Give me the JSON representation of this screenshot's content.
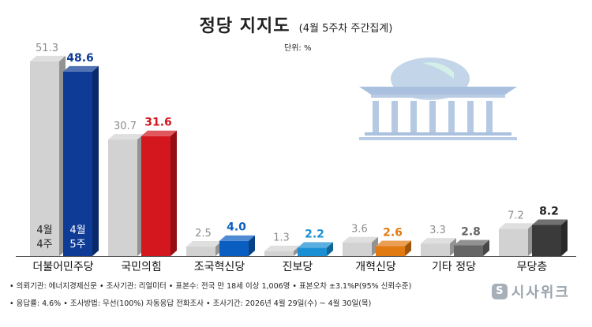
{
  "header": {
    "title": "정당 지지도",
    "subtitle": "(4월 5주차 주간집계)",
    "unit": "단위: %"
  },
  "chart_data": {
    "type": "bar",
    "categories": [
      "더불어민주당",
      "국민의힘",
      "조국혁신당",
      "진보당",
      "개혁신당",
      "기타 정당",
      "무당층"
    ],
    "series": [
      {
        "name": "4월 4주",
        "values": [
          51.3,
          30.7,
          2.5,
          1.3,
          3.6,
          3.3,
          7.2
        ],
        "color": "#d2d2d2"
      },
      {
        "name": "4월 5주",
        "values": [
          48.6,
          31.6,
          4.0,
          2.2,
          2.6,
          2.8,
          8.2
        ]
      }
    ],
    "colors_current": [
      "#0d3b96",
      "#d4161e",
      "#0a5ec2",
      "#1a8fd4",
      "#e27a12",
      "#666666",
      "#3a3a3a"
    ],
    "value_label_colors": [
      "#0d3b96",
      "#d4161e",
      "#0a5ec2",
      "#1a8fd4",
      "#e27a12",
      "#666666",
      "#222222"
    ],
    "in_bar_labels": [
      "4월\n4주",
      "4월\n5주"
    ],
    "ylim": [
      0,
      55
    ]
  },
  "footer": {
    "line1": "• 의뢰기관: 에너지경제신문  • 조사기관: 리얼미터  • 표본수: 전국 만 18세 이상 1,006명  • 표본오차 ±3.1%P(95% 신뢰수준)",
    "line2": "• 응답률: 4.6%  • 조사방법: 무선(100%) 자동응답 전화조사  • 조사기간: 2026년 4월 29일(수) ~ 4월 30일(목)"
  },
  "logo": {
    "text": "시사위크",
    "mark": "S"
  }
}
